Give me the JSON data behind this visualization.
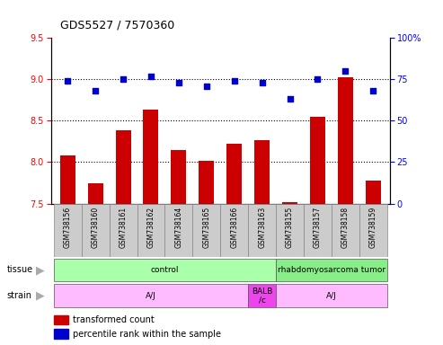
{
  "title": "GDS5527 / 7570360",
  "samples": [
    "GSM738156",
    "GSM738160",
    "GSM738161",
    "GSM738162",
    "GSM738164",
    "GSM738165",
    "GSM738166",
    "GSM738163",
    "GSM738155",
    "GSM738157",
    "GSM738158",
    "GSM738159"
  ],
  "bar_values": [
    8.08,
    7.75,
    8.38,
    8.63,
    8.15,
    8.02,
    8.22,
    8.27,
    7.52,
    8.55,
    9.02,
    7.78
  ],
  "scatter_values": [
    74,
    68,
    75,
    77,
    73,
    71,
    74,
    73,
    63,
    75,
    80,
    68
  ],
  "ylim_left": [
    7.5,
    9.5
  ],
  "ylim_right": [
    0,
    100
  ],
  "yticks_left": [
    7.5,
    8.0,
    8.5,
    9.0,
    9.5
  ],
  "yticks_right": [
    0,
    25,
    50,
    75,
    100
  ],
  "bar_color": "#cc0000",
  "scatter_color": "#0000cc",
  "bar_bottom": 7.5,
  "hgrid_vals": [
    8.0,
    8.5,
    9.0
  ],
  "tissue_groups": [
    {
      "label": "control",
      "start": 0,
      "end": 7,
      "color": "#aaffaa"
    },
    {
      "label": "rhabdomyosarcoma tumor",
      "start": 8,
      "end": 11,
      "color": "#88ee88"
    }
  ],
  "strain_groups": [
    {
      "label": "A/J",
      "start": 0,
      "end": 6,
      "color": "#ffbbff"
    },
    {
      "label": "BALB\n/c",
      "start": 7,
      "end": 7,
      "color": "#ee44ee"
    },
    {
      "label": "A/J",
      "start": 8,
      "end": 11,
      "color": "#ffbbff"
    }
  ],
  "arrow_color": "#aaaaaa",
  "label_bg": "#cccccc",
  "legend_red_label": "transformed count",
  "legend_blue_label": "percentile rank within the sample",
  "scatter_size": 16
}
